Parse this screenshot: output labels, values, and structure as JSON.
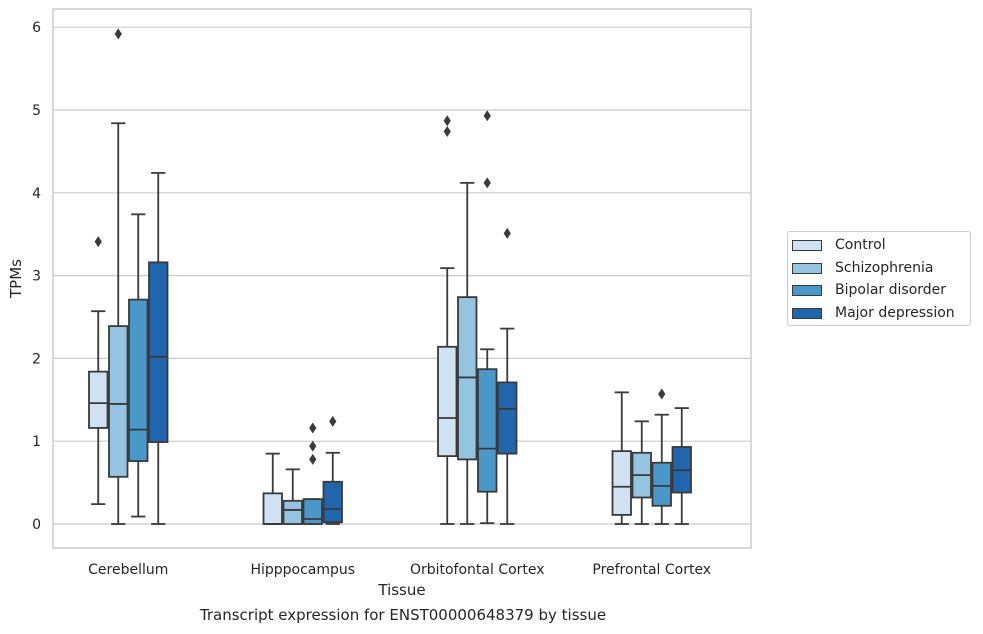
{
  "chart_data": {
    "type": "box",
    "xlabel": "Tissue",
    "ylabel": "TPMs",
    "caption": "Transcript expression for ENST00000648379 by tissue",
    "ylim": [
      -0.28,
      6.22
    ],
    "yticks": [
      0,
      1,
      2,
      3,
      4,
      5,
      6
    ],
    "grid": "horizontal",
    "legend_position": "right",
    "categories": [
      "Cerebellum",
      "Hipppocampus",
      "Orbitofontal Cortex",
      "Prefrontal Cortex"
    ],
    "series": [
      {
        "name": "Control",
        "color": "#d0e1f2",
        "boxes": [
          {
            "whisker_low": 0.24,
            "q1": 1.16,
            "median": 1.46,
            "q3": 1.84,
            "whisker_high": 2.57,
            "outliers": [
              3.41
            ]
          },
          {
            "whisker_low": 0.0,
            "q1": 0.0,
            "median": 0.0,
            "q3": 0.37,
            "whisker_high": 0.85,
            "outliers": []
          },
          {
            "whisker_low": 0.0,
            "q1": 0.82,
            "median": 1.28,
            "q3": 2.14,
            "whisker_high": 3.09,
            "outliers": [
              4.74,
              4.87
            ]
          },
          {
            "whisker_low": 0.0,
            "q1": 0.11,
            "median": 0.45,
            "q3": 0.88,
            "whisker_high": 1.59,
            "outliers": []
          }
        ]
      },
      {
        "name": "Schizophrenia",
        "color": "#94c4df",
        "boxes": [
          {
            "whisker_low": 0.0,
            "q1": 0.57,
            "median": 1.45,
            "q3": 2.39,
            "whisker_high": 4.84,
            "outliers": [
              5.92
            ]
          },
          {
            "whisker_low": 0.0,
            "q1": 0.0,
            "median": 0.17,
            "q3": 0.28,
            "whisker_high": 0.66,
            "outliers": []
          },
          {
            "whisker_low": 0.0,
            "q1": 0.78,
            "median": 1.77,
            "q3": 2.74,
            "whisker_high": 4.12,
            "outliers": []
          },
          {
            "whisker_low": 0.0,
            "q1": 0.32,
            "median": 0.59,
            "q3": 0.86,
            "whisker_high": 1.24,
            "outliers": []
          }
        ]
      },
      {
        "name": "Bipolar disorder",
        "color": "#4a98c9",
        "boxes": [
          {
            "whisker_low": 0.09,
            "q1": 0.76,
            "median": 1.14,
            "q3": 2.71,
            "whisker_high": 3.74,
            "outliers": []
          },
          {
            "whisker_low": 0.0,
            "q1": 0.0,
            "median": 0.06,
            "q3": 0.3,
            "whisker_high": 0.3,
            "outliers": [
              0.78,
              0.94,
              1.16
            ]
          },
          {
            "whisker_low": 0.01,
            "q1": 0.39,
            "median": 0.91,
            "q3": 1.87,
            "whisker_high": 2.11,
            "outliers": [
              4.12,
              4.93
            ]
          },
          {
            "whisker_low": 0.0,
            "q1": 0.22,
            "median": 0.46,
            "q3": 0.74,
            "whisker_high": 1.32,
            "outliers": [
              1.57
            ]
          }
        ]
      },
      {
        "name": "Major depression",
        "color": "#2166ac",
        "boxes": [
          {
            "whisker_low": 0.0,
            "q1": 0.99,
            "median": 2.02,
            "q3": 3.16,
            "whisker_high": 4.24,
            "outliers": []
          },
          {
            "whisker_low": 0.0,
            "q1": 0.02,
            "median": 0.18,
            "q3": 0.51,
            "whisker_high": 0.86,
            "outliers": [
              1.24
            ]
          },
          {
            "whisker_low": 0.0,
            "q1": 0.85,
            "median": 1.39,
            "q3": 1.71,
            "whisker_high": 2.36,
            "outliers": [
              3.51
            ]
          },
          {
            "whisker_low": 0.0,
            "q1": 0.38,
            "median": 0.65,
            "q3": 0.93,
            "whisker_high": 1.4,
            "outliers": []
          }
        ]
      }
    ]
  }
}
